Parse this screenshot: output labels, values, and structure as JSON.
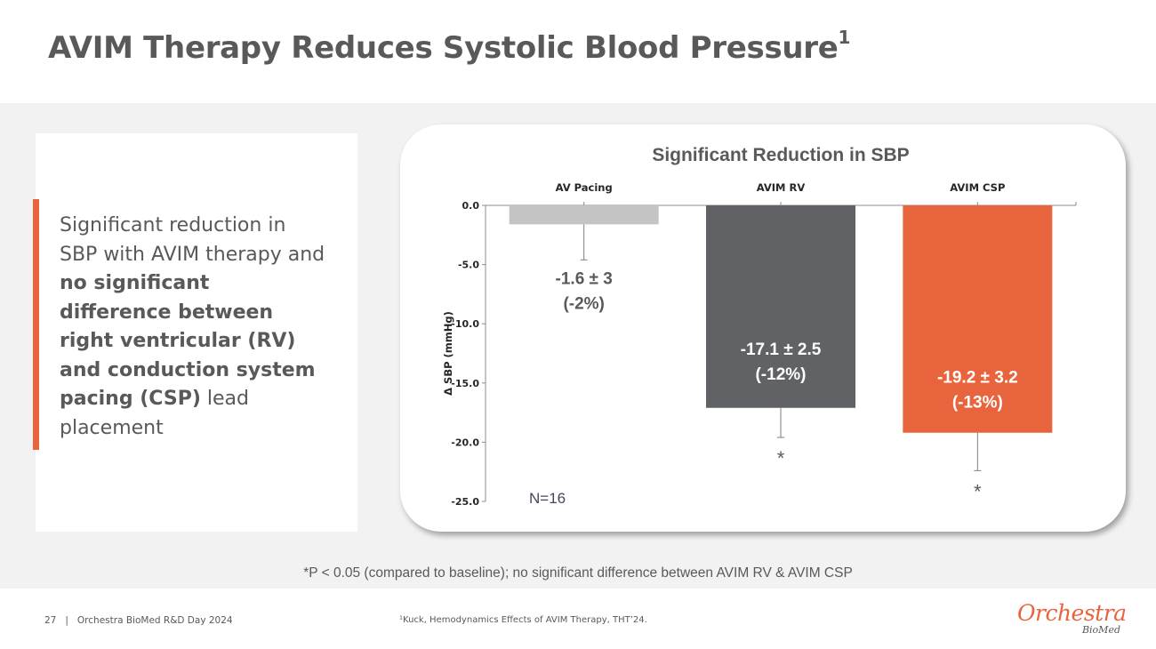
{
  "slide": {
    "title": "AVIM Therapy Reduces Systolic Blood Pressure",
    "title_sup": "1",
    "left_text": {
      "part1": "Significant reduction in SBP with AVIM therapy and ",
      "bold1": "no significant difference between right ventricular (RV) and conduction system pacing (CSP)",
      "part2": " lead placement"
    },
    "footnote": "*P < 0.05 (compared to baseline); no significant difference between AVIM RV & AVIM CSP",
    "page_number": "27",
    "footer_separator": "|",
    "footer_event": "Orchestra BioMed R&D Day 2024",
    "reference": "¹Kuck, Hemodynamics Effects of AVIM Therapy, THT’24.",
    "logo_main": "Orchestra",
    "logo_sub": "BioMed"
  },
  "chart_data": {
    "type": "bar",
    "title": "Significant Reduction in SBP",
    "ylabel": "Δ SBP (mmHg)",
    "xlabel": "",
    "ylim": [
      -25,
      0
    ],
    "yticks": [
      0,
      -5,
      -10,
      -15,
      -20,
      -25
    ],
    "ytick_labels": [
      "0.0",
      "-5.0",
      "-10.0",
      "-15.0",
      "-20.0",
      "-25.0"
    ],
    "categories": [
      "AV Pacing",
      "AVIM RV",
      "AVIM CSP"
    ],
    "values": [
      -1.6,
      -17.1,
      -19.2
    ],
    "errors": [
      3,
      2.5,
      3.2
    ],
    "value_labels": [
      "-1.6 ± 3",
      "-17.1 ± 2.5",
      "-19.2 ± 3.2"
    ],
    "pct_labels": [
      "(-2%)",
      "(-12%)",
      "(-13%)"
    ],
    "significance": [
      "",
      "*",
      "*"
    ],
    "colors": [
      "#c4c4c4",
      "#616266",
      "#e8643c"
    ],
    "annotation": "N=16"
  }
}
